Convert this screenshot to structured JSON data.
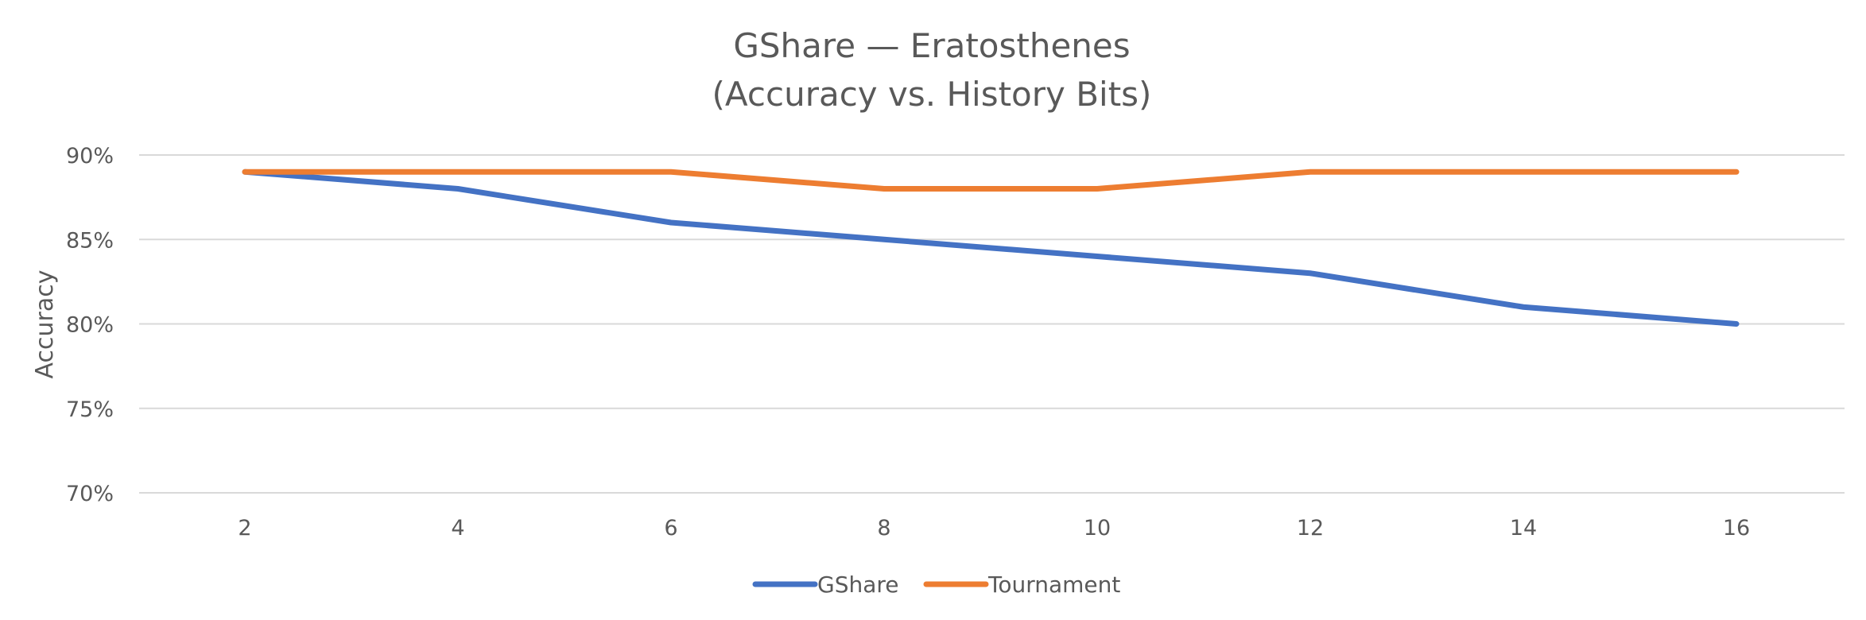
{
  "chart_data": {
    "type": "line",
    "title_lines": [
      "GShare — Eratosthenes",
      "(Accuracy vs. History Bits)"
    ],
    "xlabel": "",
    "ylabel": "Accuracy",
    "x": [
      2,
      4,
      6,
      8,
      10,
      12,
      14,
      16
    ],
    "x_tick_labels": [
      "2",
      "4",
      "6",
      "8",
      "10",
      "12",
      "14",
      "16"
    ],
    "ylim": [
      70,
      90
    ],
    "y_ticks": [
      70,
      75,
      80,
      85,
      90
    ],
    "y_tick_labels": [
      "70%",
      "75%",
      "80%",
      "85%",
      "90%"
    ],
    "grid": true,
    "legend": "bottom",
    "series": [
      {
        "name": "GShare",
        "color": "#4472c4",
        "values": [
          89,
          88,
          86,
          85,
          84,
          83,
          81,
          80
        ]
      },
      {
        "name": "Tournament",
        "color": "#ed7d31",
        "values": [
          89,
          89,
          89,
          88,
          88,
          89,
          89,
          89
        ]
      }
    ]
  }
}
